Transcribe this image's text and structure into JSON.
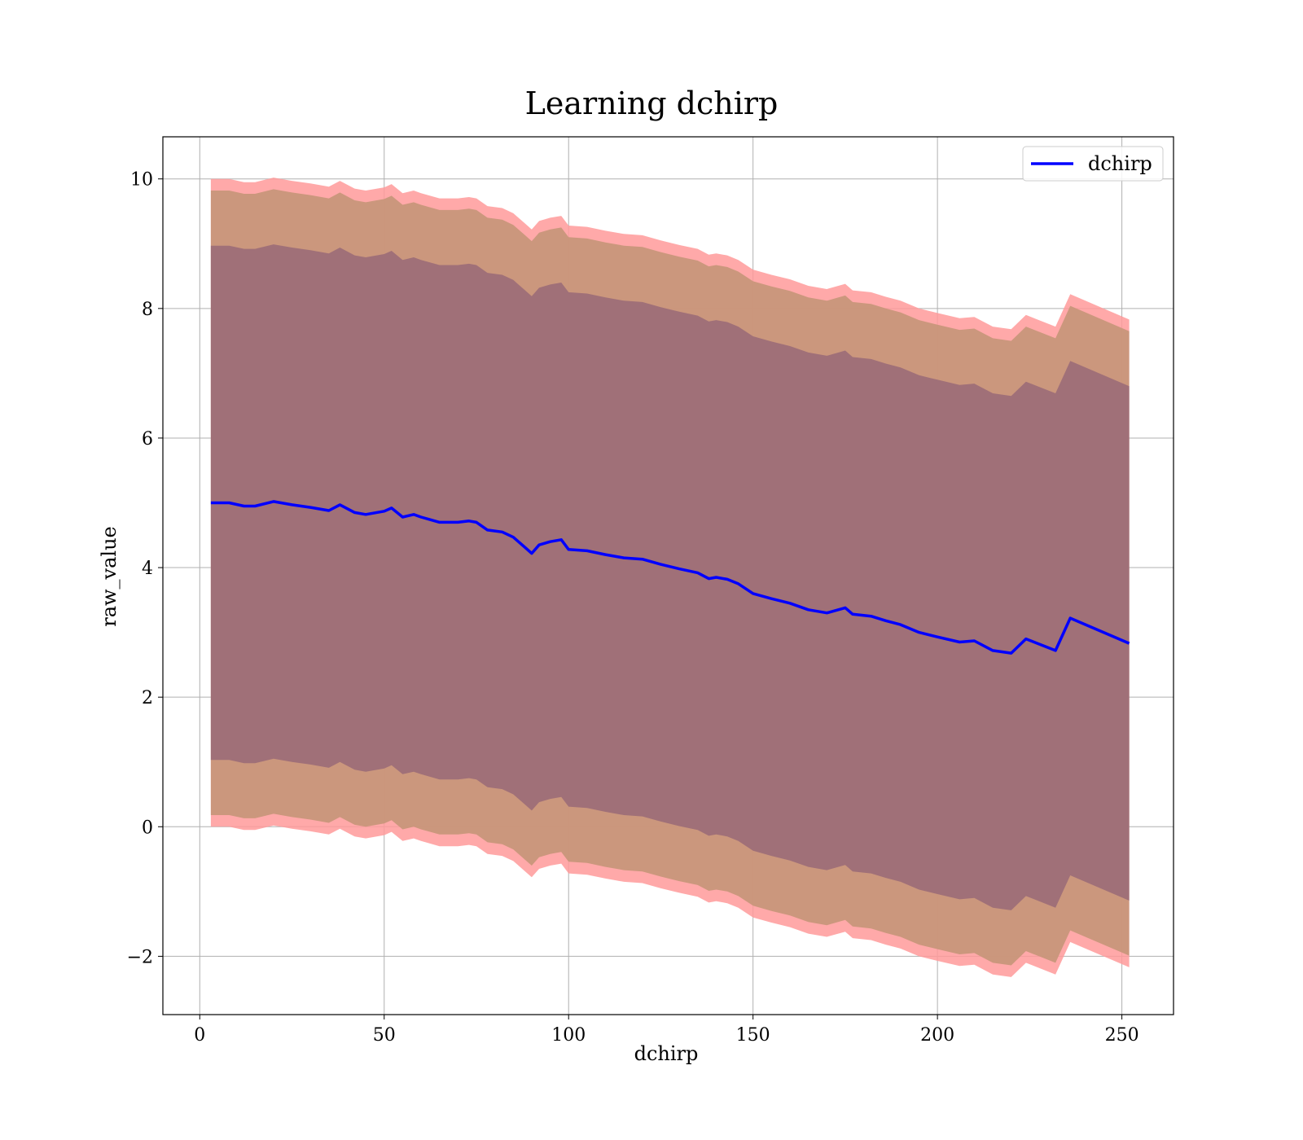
{
  "chart_data": {
    "type": "line",
    "title": "Learning dchirp",
    "xlabel": "dchirp",
    "ylabel": "raw_value",
    "xlim": [
      -10,
      264
    ],
    "ylim": [
      -2.9,
      10.65
    ],
    "xticks": [
      0,
      50,
      100,
      150,
      200,
      250
    ],
    "yticks": [
      -2,
      0,
      2,
      4,
      6,
      8,
      10
    ],
    "ytick_labels": [
      "−2",
      "0",
      "2",
      "4",
      "6",
      "8",
      "10"
    ],
    "grid": true,
    "legend": {
      "position": "top-right",
      "entries": [
        "dchirp"
      ]
    },
    "colors": {
      "line": "#0000ff",
      "outer_band": "#ff9a9a",
      "middle_band": "#c8967a",
      "inner_band": "#a07078"
    },
    "series": [
      {
        "name": "dchirp",
        "x": [
          3,
          8,
          12,
          15,
          20,
          25,
          30,
          35,
          38,
          42,
          45,
          50,
          52,
          55,
          58,
          60,
          65,
          70,
          73,
          75,
          78,
          82,
          85,
          88,
          90,
          92,
          95,
          98,
          100,
          105,
          110,
          115,
          120,
          125,
          130,
          135,
          138,
          140,
          143,
          146,
          150,
          155,
          160,
          165,
          170,
          175,
          177,
          182,
          186,
          190,
          195,
          200,
          206,
          210,
          215,
          220,
          224,
          232,
          236,
          252
        ],
        "y": [
          5.0,
          5.0,
          4.95,
          4.95,
          5.02,
          4.97,
          4.93,
          4.88,
          4.97,
          4.85,
          4.82,
          4.87,
          4.92,
          4.78,
          4.82,
          4.78,
          4.7,
          4.7,
          4.72,
          4.7,
          4.58,
          4.55,
          4.47,
          4.32,
          4.22,
          4.35,
          4.4,
          4.43,
          4.28,
          4.26,
          4.2,
          4.15,
          4.13,
          4.05,
          3.98,
          3.92,
          3.83,
          3.85,
          3.82,
          3.75,
          3.6,
          3.52,
          3.45,
          3.35,
          3.3,
          3.38,
          3.28,
          3.25,
          3.18,
          3.12,
          3.0,
          2.93,
          2.85,
          2.87,
          2.72,
          2.68,
          2.9,
          2.72,
          3.22,
          2.83
        ]
      }
    ],
    "bands": [
      {
        "role": "outer",
        "offset_upper": 5.0,
        "offset_lower": 5.0,
        "growth": 0.0
      },
      {
        "role": "middle",
        "offset_upper": 4.82,
        "offset_lower": 4.82,
        "growth": 0.0
      },
      {
        "role": "inner",
        "offset_upper": 3.97,
        "offset_lower": 3.97,
        "growth": 0.0
      }
    ]
  }
}
